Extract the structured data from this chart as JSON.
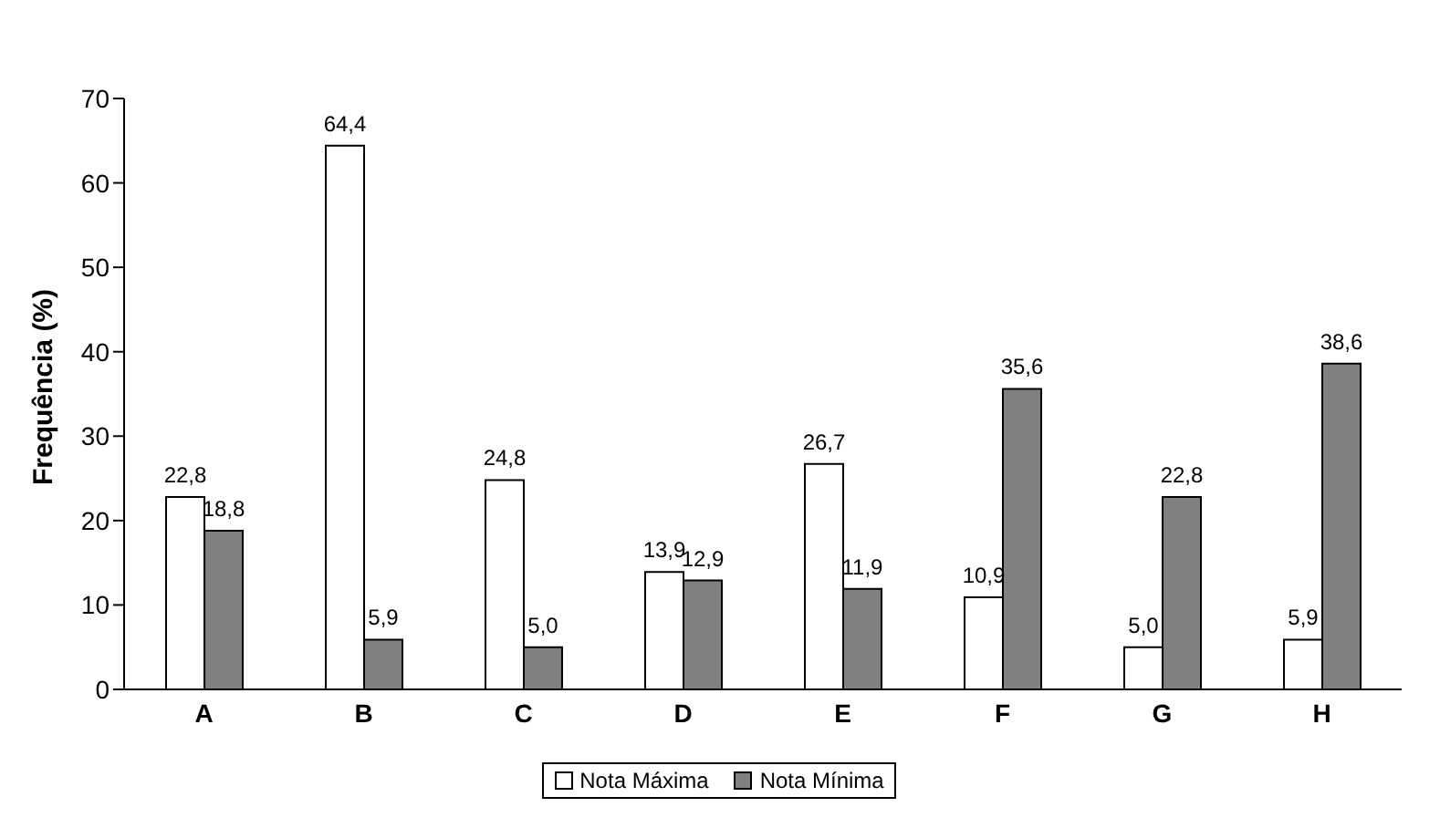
{
  "chart_data": {
    "type": "bar",
    "ylabel": "Frequência (%)",
    "categories": [
      "A",
      "B",
      "C",
      "D",
      "E",
      "F",
      "G",
      "H"
    ],
    "series": [
      {
        "name": "Nota Máxima",
        "color": "#ffffff",
        "values": [
          22.8,
          64.4,
          24.8,
          13.9,
          26.7,
          10.9,
          5.0,
          5.9
        ],
        "value_labels": [
          "22,8",
          "64,4",
          "24,8",
          "13,9",
          "26,7",
          "10,9",
          "5,0",
          "5,9"
        ]
      },
      {
        "name": "Nota Mínima",
        "color": "#808080",
        "values": [
          18.8,
          5.9,
          5.0,
          12.9,
          11.9,
          35.6,
          22.8,
          38.6
        ],
        "value_labels": [
          "18,8",
          "5,9",
          "5,0",
          "12,9",
          "11,9",
          "35,6",
          "22,8",
          "38,6"
        ]
      }
    ],
    "ylim": [
      0,
      70
    ],
    "yticks": [
      0,
      10,
      20,
      30,
      40,
      50,
      60,
      70
    ],
    "grid": false,
    "legend": "bottom"
  }
}
